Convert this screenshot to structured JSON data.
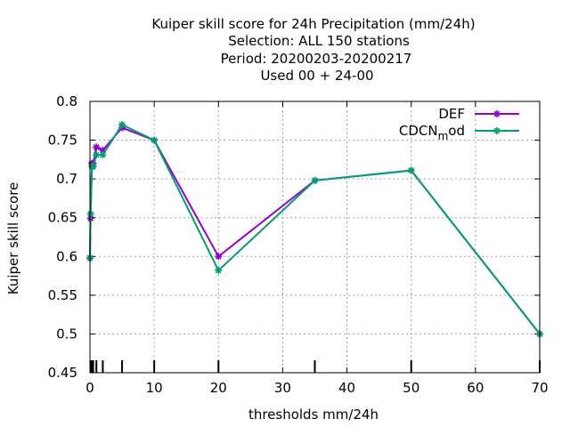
{
  "chart_data": {
    "type": "line",
    "title_lines": [
      "Kuiper skill score  for 24h Precipitation (mm/24h)",
      "Selection: ALL    150 stations",
      "Period: 20200203-20200217",
      "Used  00  + 24-00"
    ],
    "xlabel": "thresholds mm/24h",
    "ylabel": "Kuiper skill score",
    "xlim": [
      0,
      70
    ],
    "ylim": [
      0.45,
      0.8
    ],
    "x_ticks": [
      "0",
      "10",
      "20",
      "30",
      "40",
      "50",
      "60",
      "70"
    ],
    "y_ticks": [
      "0.45",
      "0.5",
      "0.55",
      "0.6",
      "0.65",
      "0.7",
      "0.75",
      "0.8"
    ],
    "grid": true,
    "legend_position": "top-right",
    "threshold_marks": [
      0.1,
      0.3,
      0.5,
      1,
      2,
      5,
      10,
      20,
      35,
      50,
      70
    ],
    "series": [
      {
        "name": "DEF",
        "color": "#9400d3",
        "x": [
          0,
          0.1,
          0.3,
          0.5,
          1,
          2,
          5,
          10,
          20,
          35,
          50,
          70
        ],
        "y": [
          0.598,
          0.649,
          0.72,
          0.72,
          0.741,
          0.737,
          0.766,
          0.75,
          0.6,
          0.698,
          0.711,
          0.5
        ]
      },
      {
        "name": "CDCN",
        "name_sub": "m",
        "name_tail": "od",
        "color": "#009e73",
        "x": [
          0,
          0.1,
          0.3,
          0.5,
          1,
          2,
          5,
          10,
          20,
          35,
          50,
          70
        ],
        "y": [
          0.598,
          0.655,
          0.716,
          0.716,
          0.731,
          0.731,
          0.77,
          0.75,
          0.582,
          0.698,
          0.711,
          0.5
        ]
      }
    ]
  }
}
